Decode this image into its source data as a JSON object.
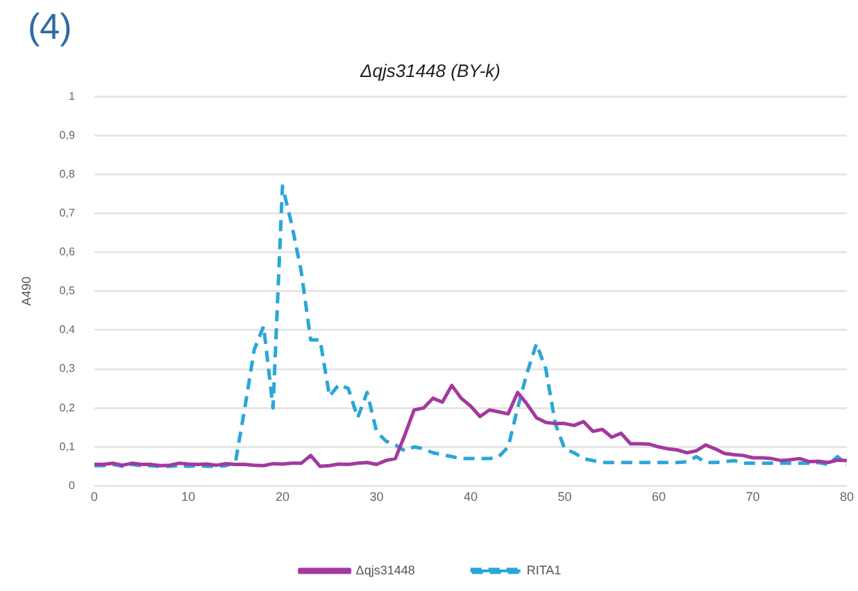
{
  "chart_data": {
    "type": "line",
    "title": "Δqjs31448 (BY-k)",
    "ylabel": "A490",
    "annotations": [
      "(4)"
    ],
    "x": [
      0,
      1,
      2,
      3,
      4,
      5,
      6,
      7,
      8,
      9,
      10,
      11,
      12,
      13,
      14,
      15,
      16,
      17,
      18,
      19,
      20,
      21,
      22,
      23,
      24,
      25,
      26,
      27,
      28,
      29,
      30,
      31,
      32,
      33,
      34,
      35,
      36,
      37,
      38,
      39,
      40,
      41,
      42,
      43,
      44,
      45,
      46,
      47,
      48,
      49,
      50,
      51,
      52,
      53,
      54,
      55,
      56,
      57,
      58,
      59,
      60,
      61,
      62,
      63,
      64,
      65,
      66,
      67,
      68,
      69,
      70,
      71,
      72,
      73,
      74,
      75,
      76,
      77,
      78,
      79,
      80
    ],
    "series": [
      {
        "name": "Δqjs31448",
        "color": "#a3399f",
        "line_style": "solid",
        "values": [
          0.055,
          0.055,
          0.058,
          0.053,
          0.058,
          0.055,
          0.055,
          0.052,
          0.053,
          0.058,
          0.056,
          0.055,
          0.056,
          0.053,
          0.057,
          0.055,
          0.055,
          0.053,
          0.052,
          0.057,
          0.056,
          0.058,
          0.058,
          0.078,
          0.05,
          0.052,
          0.056,
          0.055,
          0.058,
          0.06,
          0.055,
          0.065,
          0.07,
          0.13,
          0.195,
          0.2,
          0.225,
          0.215,
          0.258,
          0.225,
          0.205,
          0.178,
          0.195,
          0.19,
          0.185,
          0.24,
          0.21,
          0.175,
          0.163,
          0.16,
          0.16,
          0.155,
          0.165,
          0.14,
          0.145,
          0.125,
          0.135,
          0.108,
          0.108,
          0.107,
          0.1,
          0.095,
          0.092,
          0.085,
          0.09,
          0.105,
          0.095,
          0.083,
          0.08,
          0.078,
          0.072,
          0.072,
          0.07,
          0.065,
          0.067,
          0.07,
          0.062,
          0.063,
          0.06,
          0.066,
          0.065
        ]
      },
      {
        "name": "RITA1",
        "color": "#2aa6d9",
        "line_style": "dashed",
        "values": [
          0.052,
          0.052,
          0.055,
          0.05,
          0.055,
          0.052,
          0.052,
          0.05,
          0.05,
          0.052,
          0.05,
          0.052,
          0.05,
          0.05,
          0.052,
          0.06,
          0.2,
          0.35,
          0.41,
          0.2,
          0.77,
          0.67,
          0.55,
          0.375,
          0.375,
          0.23,
          0.26,
          0.25,
          0.175,
          0.24,
          0.14,
          0.115,
          0.105,
          0.09,
          0.1,
          0.095,
          0.085,
          0.08,
          0.075,
          0.07,
          0.07,
          0.07,
          0.07,
          0.075,
          0.1,
          0.2,
          0.29,
          0.365,
          0.3,
          0.16,
          0.095,
          0.085,
          0.07,
          0.065,
          0.06,
          0.06,
          0.06,
          0.06,
          0.06,
          0.06,
          0.06,
          0.06,
          0.06,
          0.062,
          0.075,
          0.06,
          0.06,
          0.062,
          0.065,
          0.058,
          0.058,
          0.058,
          0.058,
          0.058,
          0.058,
          0.058,
          0.058,
          0.06,
          0.055,
          0.075,
          0.055
        ]
      }
    ],
    "xlim": [
      0,
      80
    ],
    "xticks": [
      0,
      10,
      20,
      30,
      40,
      50,
      60,
      70,
      80
    ],
    "ylim": [
      0,
      1
    ],
    "yticks": [
      0,
      {
        "value": 0.1,
        "label": "0,1"
      },
      {
        "value": 0.2,
        "label": "0,2"
      },
      {
        "value": 0.3,
        "label": "0,3"
      },
      {
        "value": 0.4,
        "label": "0,4"
      },
      {
        "value": 0.5,
        "label": "0,5"
      },
      {
        "value": 0.6,
        "label": "0,6"
      },
      {
        "value": 0.7,
        "label": "0,7"
      },
      {
        "value": 0.8,
        "label": "0,8"
      },
      {
        "value": 0.9,
        "label": "0,9"
      },
      1
    ],
    "grid": "y",
    "legend": "bottom",
    "marker": "none"
  }
}
